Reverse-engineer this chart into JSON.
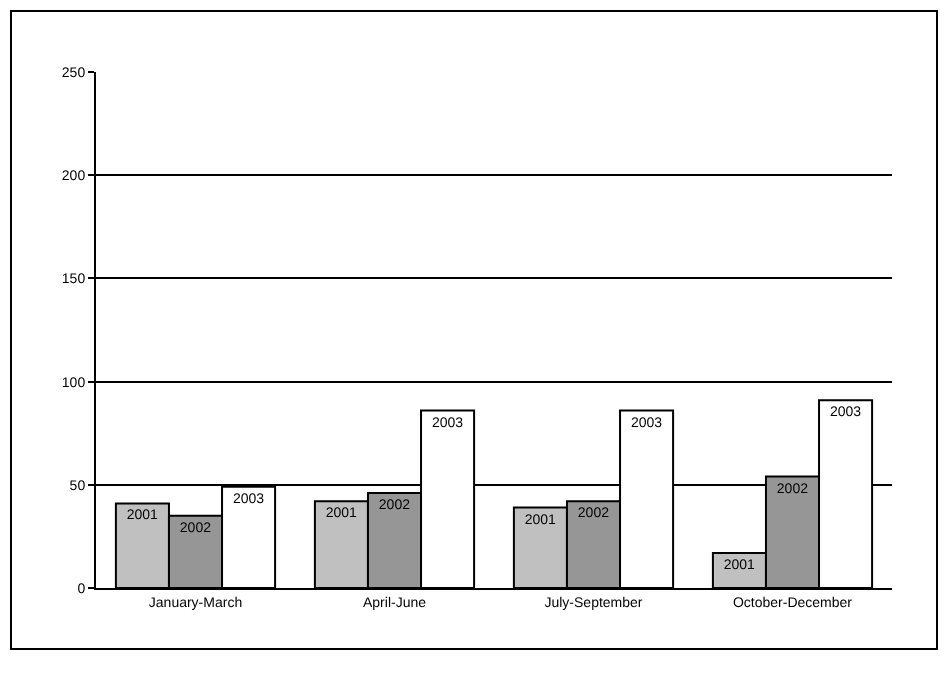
{
  "chart_data": {
    "type": "bar",
    "categories": [
      "January-March",
      "April-June",
      "July-September",
      "October-December"
    ],
    "series": [
      {
        "name": "2001",
        "color": "#c0c0c0",
        "values": [
          41,
          42,
          39,
          17
        ]
      },
      {
        "name": "2002",
        "color": "#969696",
        "values": [
          35,
          46,
          42,
          54
        ]
      },
      {
        "name": "2003",
        "color": "#ffffff",
        "values": [
          49,
          86,
          86,
          91
        ]
      }
    ],
    "ylim": [
      0,
      250
    ],
    "yticks": [
      0,
      50,
      100,
      150,
      200,
      250
    ],
    "grid": "y",
    "legend": false
  }
}
